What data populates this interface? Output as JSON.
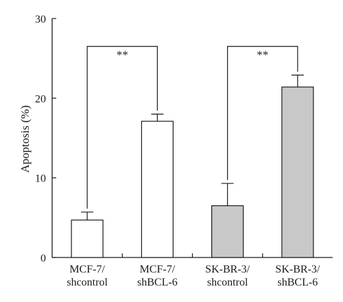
{
  "chart_data": {
    "type": "bar",
    "ylabel": "Apoptosis (%)",
    "ylim": [
      0,
      30
    ],
    "yticks": [
      0,
      10,
      20,
      30
    ],
    "grid": false,
    "categories": [
      [
        "MCF-7/",
        "shcontrol"
      ],
      [
        "MCF-7/",
        "shBCL-6"
      ],
      [
        "SK-BR-3/",
        "shcontrol"
      ],
      [
        "SK-BR-3/",
        "shBCL-6"
      ]
    ],
    "values": [
      4.7,
      17.1,
      6.5,
      21.4
    ],
    "errors": [
      1.0,
      0.9,
      2.8,
      1.5
    ],
    "bar_colors": [
      "#ffffff",
      "#ffffff",
      "#c8c8c8",
      "#c8c8c8"
    ],
    "significance": [
      {
        "from": 0,
        "to": 1,
        "label": "**",
        "y": 26.5
      },
      {
        "from": 2,
        "to": 3,
        "label": "**",
        "y": 26.5
      }
    ]
  }
}
